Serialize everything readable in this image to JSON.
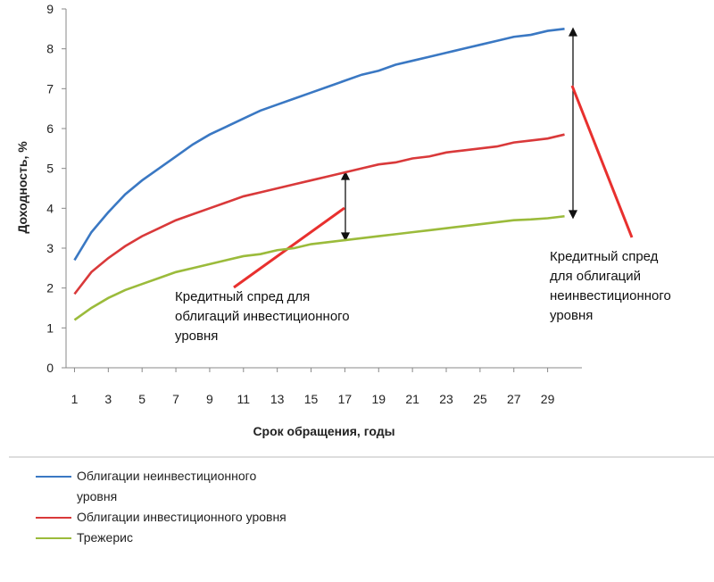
{
  "chart_data": {
    "type": "line",
    "y_label": "Доходность, %",
    "x_label": "Срок обращения, годы",
    "x": [
      1,
      2,
      3,
      4,
      5,
      6,
      7,
      8,
      9,
      10,
      11,
      12,
      13,
      14,
      15,
      16,
      17,
      18,
      19,
      20,
      21,
      22,
      23,
      24,
      25,
      26,
      27,
      28,
      29,
      30
    ],
    "xlim": [
      0.5,
      30.5
    ],
    "xticks": [
      1,
      3,
      5,
      7,
      9,
      11,
      13,
      15,
      17,
      19,
      21,
      23,
      25,
      27,
      29
    ],
    "ylim": [
      0,
      9
    ],
    "yticks": [
      0,
      1,
      2,
      3,
      4,
      5,
      6,
      7,
      8,
      9
    ],
    "series": [
      {
        "name": "Облигации неинвестиционного уровня",
        "color": "#3a78c3",
        "values": [
          2.7,
          3.4,
          3.9,
          4.35,
          4.7,
          5.0,
          5.3,
          5.6,
          5.85,
          6.05,
          6.25,
          6.45,
          6.6,
          6.75,
          6.9,
          7.05,
          7.2,
          7.35,
          7.45,
          7.6,
          7.7,
          7.8,
          7.9,
          8.0,
          8.1,
          8.2,
          8.3,
          8.35,
          8.45,
          8.5
        ]
      },
      {
        "name": "Облигации инвестиционного уровня",
        "color": "#d9393a",
        "values": [
          1.85,
          2.4,
          2.75,
          3.05,
          3.3,
          3.5,
          3.7,
          3.85,
          4.0,
          4.15,
          4.3,
          4.4,
          4.5,
          4.6,
          4.7,
          4.8,
          4.9,
          5.0,
          5.1,
          5.15,
          5.25,
          5.3,
          5.4,
          5.45,
          5.5,
          5.55,
          5.65,
          5.7,
          5.75,
          5.85
        ]
      },
      {
        "name": "Трежерис",
        "color": "#9bbb3b",
        "values": [
          1.2,
          1.5,
          1.75,
          1.95,
          2.1,
          2.25,
          2.4,
          2.5,
          2.6,
          2.7,
          2.8,
          2.85,
          2.95,
          3.0,
          3.1,
          3.15,
          3.2,
          3.25,
          3.3,
          3.35,
          3.4,
          3.45,
          3.5,
          3.55,
          3.6,
          3.65,
          3.7,
          3.72,
          3.75,
          3.8
        ]
      }
    ],
    "annotations": [
      {
        "lines": [
          "Кредитный спред для",
          "облигаций инвестиционного",
          "уровня"
        ]
      },
      {
        "lines": [
          "Кредитный спред",
          "для облигаций",
          "неинвестиционного",
          "уровня"
        ]
      }
    ]
  }
}
